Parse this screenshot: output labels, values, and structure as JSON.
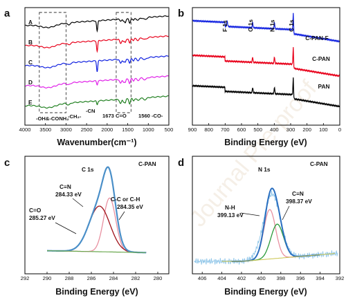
{
  "chart_data": [
    {
      "panel": "a",
      "type": "line",
      "xlabel": "Wavenumber(cm⁻¹)",
      "ylabel": "",
      "xlim": [
        4000,
        500
      ],
      "x_reversed": true,
      "xticks": [
        4000,
        3500,
        3000,
        2500,
        2000,
        1500,
        1000,
        500
      ],
      "grid": false,
      "series": [
        {
          "name": "A",
          "color": "#000000",
          "offset": 0
        },
        {
          "name": "B",
          "color": "#e8001a",
          "offset": 1
        },
        {
          "name": "C",
          "color": "#1020e0",
          "offset": 2
        },
        {
          "name": "D",
          "color": "#e020e8",
          "offset": 3
        },
        {
          "name": "E",
          "color": "#208020",
          "offset": 4
        }
      ],
      "annotations": [
        "-OH&-CONH₂",
        "-CH₂-",
        "-CN",
        "1673 C=O",
        "1560 -CO-"
      ],
      "highlight_boxes": [
        [
          3650,
          3000
        ],
        [
          1780,
          1420
        ]
      ]
    },
    {
      "panel": "b",
      "type": "line",
      "xlabel": "Binding Energy (eV)",
      "ylabel": "",
      "xlim": [
        900,
        0
      ],
      "x_reversed": true,
      "xticks": [
        900,
        800,
        700,
        600,
        500,
        400,
        300,
        200,
        100,
        0
      ],
      "grid": false,
      "series": [
        {
          "name": "PAN",
          "color": "#000000"
        },
        {
          "name": "C-PAN",
          "color": "#e8001a"
        },
        {
          "name": "C-PAN-F",
          "color": "#1020e0"
        }
      ],
      "peak_labels": [
        {
          "label": "F 1s",
          "x": 688
        },
        {
          "label": "O 1s",
          "x": 532
        },
        {
          "label": "N 1s",
          "x": 399
        },
        {
          "label": "C 1s",
          "x": 284
        }
      ]
    },
    {
      "panel": "c",
      "type": "line",
      "title": "C 1s",
      "sample": "C-PAN",
      "xlabel": "Binding Energy (eV)",
      "ylabel": "",
      "xlim": [
        292,
        279
      ],
      "x_reversed": true,
      "xticks": [
        292,
        290,
        288,
        286,
        284,
        282,
        280
      ],
      "grid": false,
      "components": [
        {
          "name": "C≡N",
          "value_label": "284.33 eV",
          "center": 284.33,
          "color": "#4a8fc8"
        },
        {
          "name": "C-C or C-H",
          "value_label": "284.35 eV",
          "center": 284.35,
          "color": "#e890a0"
        },
        {
          "name": "C=O",
          "value_label": "285.27 eV",
          "center": 285.27,
          "color": "#a01018"
        }
      ]
    },
    {
      "panel": "d",
      "type": "line",
      "title": "N 1s",
      "sample": "C-PAN",
      "xlabel": "Binding Energy (eV)",
      "ylabel": "",
      "xlim": [
        407,
        392
      ],
      "x_reversed": true,
      "xticks": [
        406,
        404,
        402,
        400,
        398,
        396,
        394,
        392
      ],
      "grid": false,
      "components": [
        {
          "name": "N-H",
          "value_label": "399.13 eV",
          "center": 399.13,
          "color": "#e890a0"
        },
        {
          "name": "C≡N",
          "value_label": "398.37 eV",
          "center": 398.37,
          "color": "#2a9a3a"
        }
      ]
    }
  ],
  "watermark": "Journal Pre-proof"
}
